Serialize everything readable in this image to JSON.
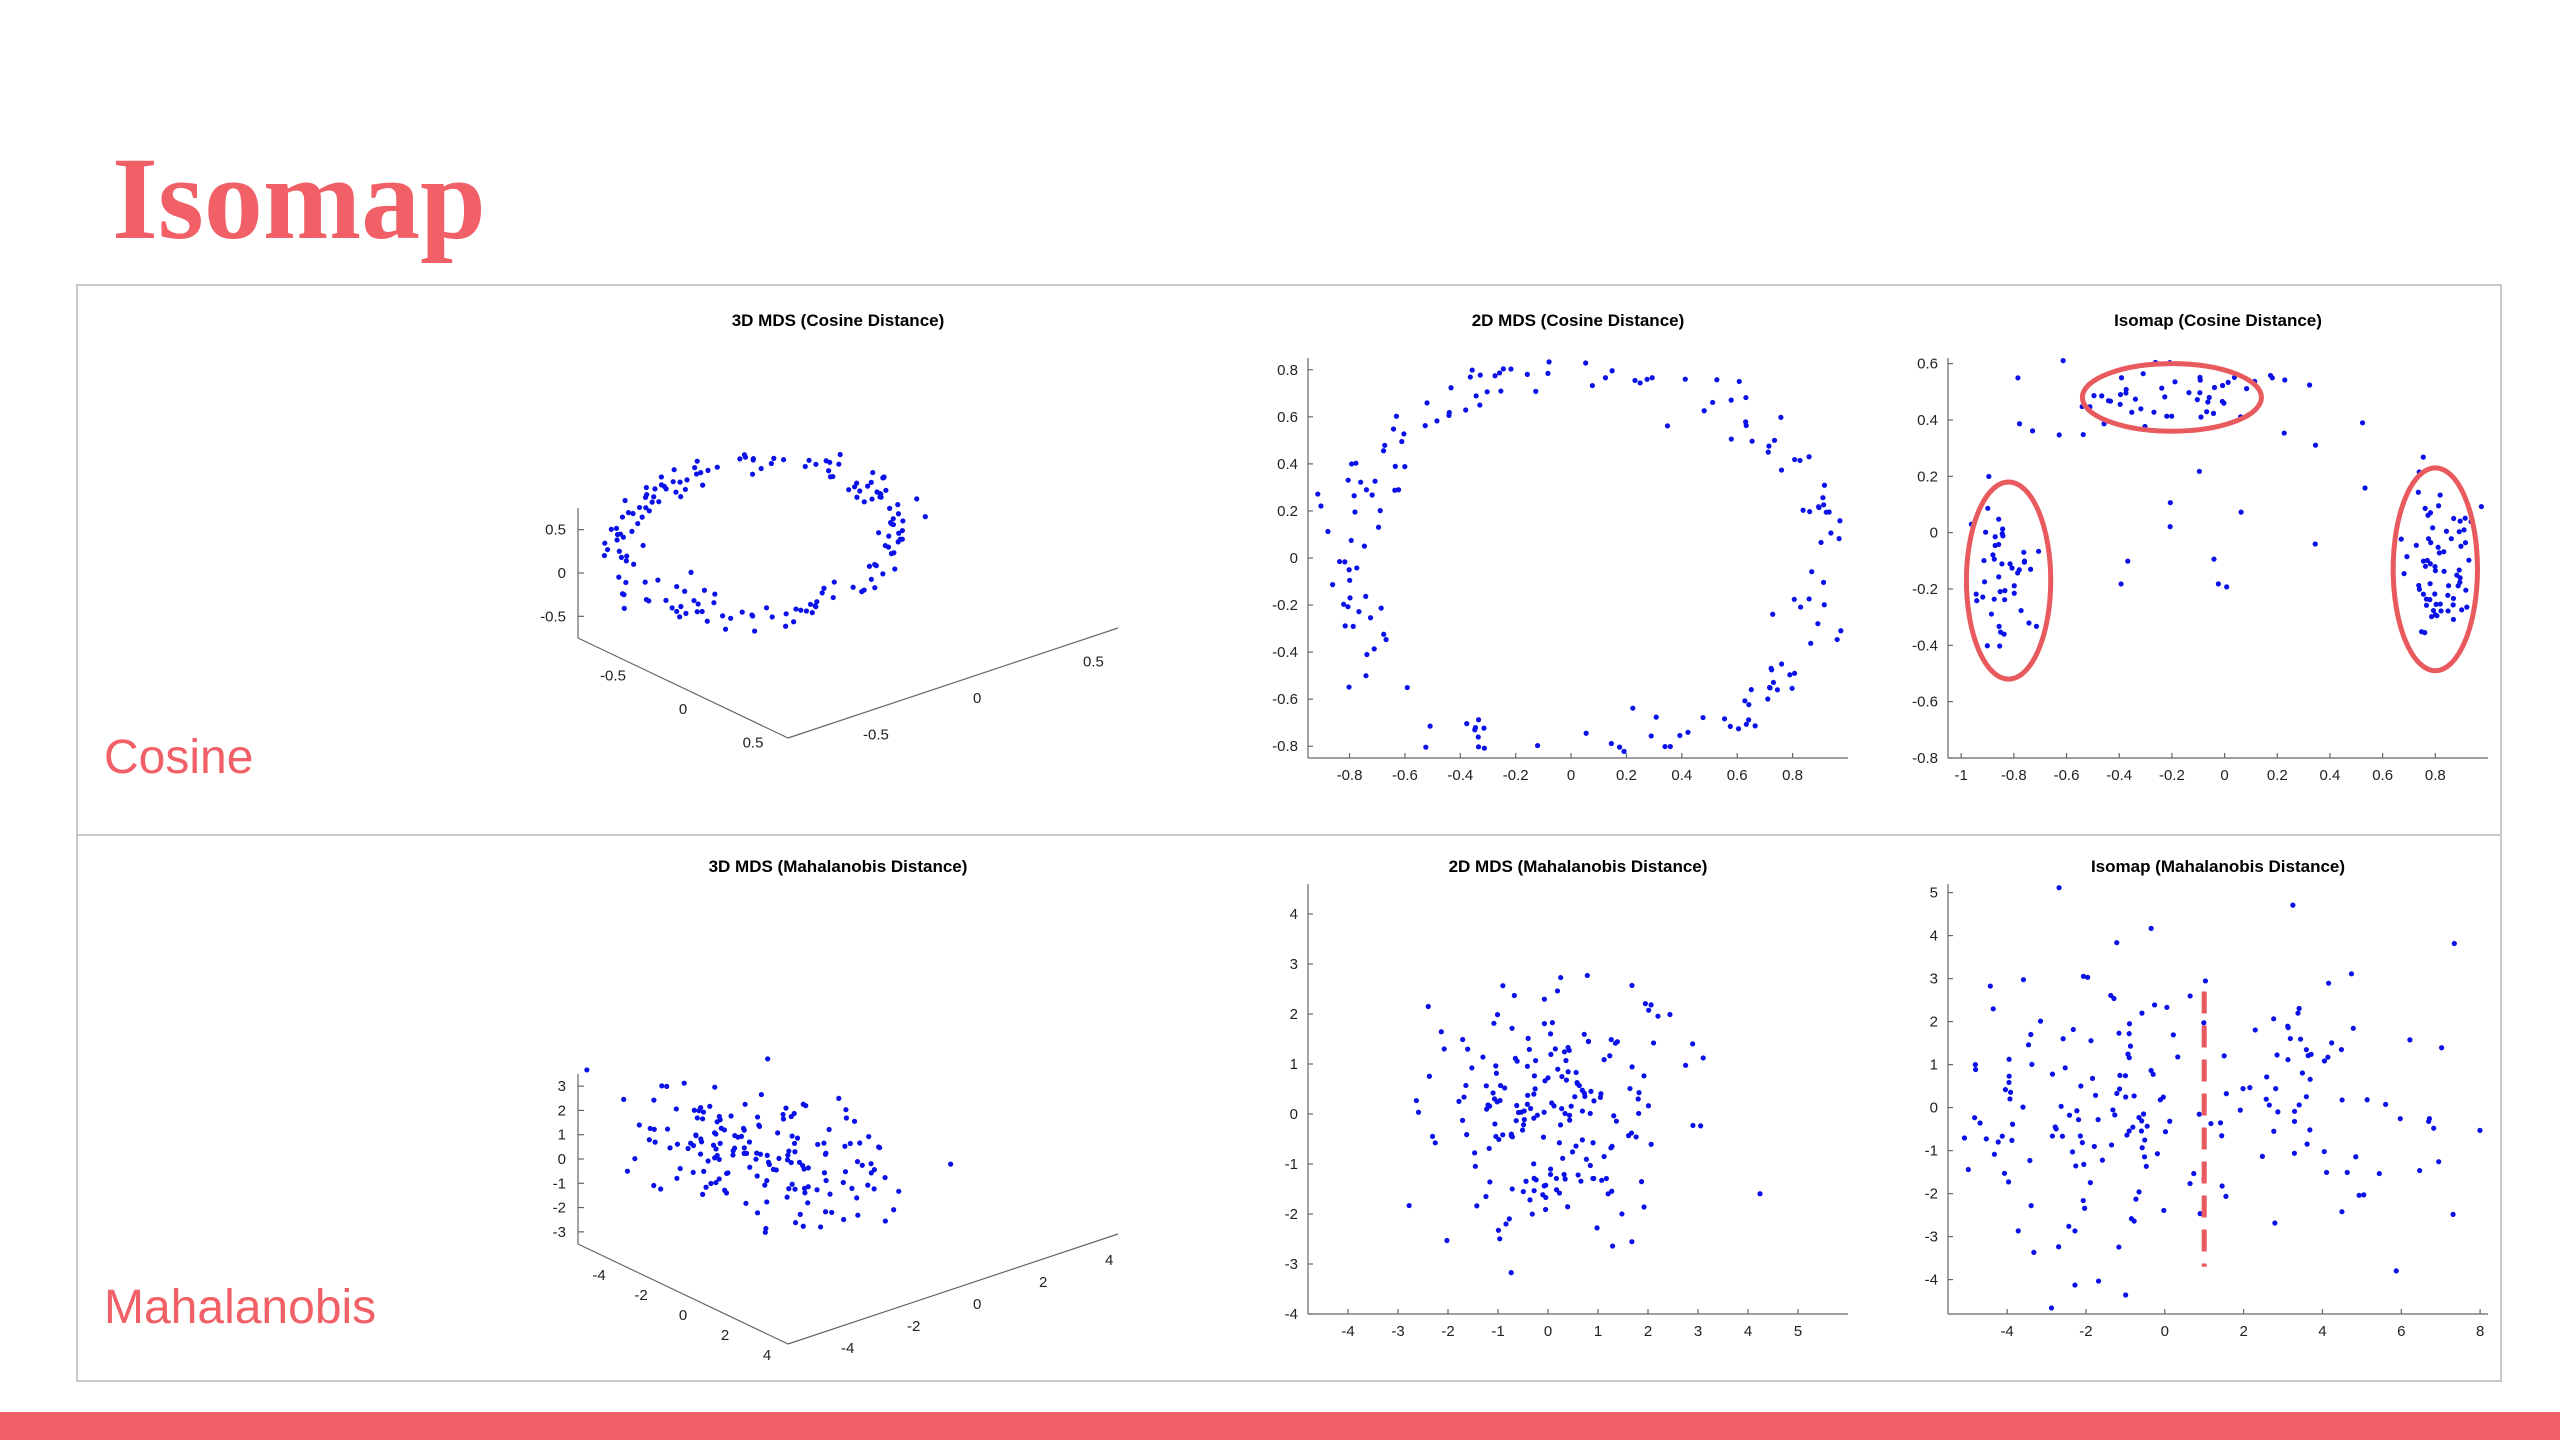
{
  "slide": {
    "title": "Isomap"
  },
  "rows": [
    {
      "label": "Cosine"
    },
    {
      "label": "Mahalanobis"
    }
  ],
  "colors": {
    "accent": "#f06066",
    "points": "#0a10e8",
    "annotation": "#e85a5e",
    "frame": "#c8c8c8"
  },
  "chart_data": [
    {
      "id": "mds3d-cosine",
      "type": "scatter",
      "projection": "3d",
      "title": "3D MDS (Cosine Distance)",
      "x_ticks": [
        "-0.5",
        "0",
        "0.5"
      ],
      "y_ticks": [
        "-0.5",
        "0",
        "0.5"
      ],
      "z_ticks": [
        "-0.5",
        "0",
        "0.5"
      ],
      "shape": "ring",
      "n_points": 170
    },
    {
      "id": "mds2d-cosine",
      "type": "scatter",
      "title": "2D MDS (Cosine Distance)",
      "xlim": [
        -0.95,
        1.0
      ],
      "ylim": [
        -0.85,
        0.85
      ],
      "x_ticks": [
        "-0.8",
        "-0.6",
        "-0.4",
        "-0.2",
        "0",
        "0.2",
        "0.4",
        "0.6",
        "0.8"
      ],
      "y_ticks": [
        "-0.8",
        "-0.6",
        "-0.4",
        "-0.2",
        "0",
        "0.2",
        "0.4",
        "0.6",
        "0.8"
      ],
      "shape": "ring",
      "n_points": 180
    },
    {
      "id": "isomap-cosine",
      "type": "scatter",
      "title": "Isomap (Cosine Distance)",
      "xlim": [
        -1.05,
        1.0
      ],
      "ylim": [
        -0.8,
        0.62
      ],
      "x_ticks": [
        "-1",
        "-0.8",
        "-0.6",
        "-0.4",
        "-0.2",
        "0",
        "0.2",
        "0.4",
        "0.6",
        "0.8"
      ],
      "y_ticks": [
        "-0.8",
        "-0.6",
        "-0.4",
        "-0.2",
        "0",
        "0.2",
        "0.4",
        "0.6"
      ],
      "shape": "arch",
      "n_points": 180,
      "annotations": [
        {
          "type": "ellipse",
          "cx": -0.2,
          "cy": 0.48,
          "rx": 0.34,
          "ry": 0.12
        },
        {
          "type": "ellipse",
          "cx": -0.82,
          "cy": -0.17,
          "rx": 0.16,
          "ry": 0.35
        },
        {
          "type": "ellipse",
          "cx": 0.8,
          "cy": -0.13,
          "rx": 0.16,
          "ry": 0.36
        }
      ]
    },
    {
      "id": "mds3d-mahalanobis",
      "type": "scatter",
      "projection": "3d",
      "title": "3D MDS (Mahalanobis Distance)",
      "z_ticks": [
        "-3",
        "-2",
        "-1",
        "0",
        "1",
        "2",
        "3"
      ],
      "x_ticks": [
        "-4",
        "-2",
        "0",
        "2",
        "4"
      ],
      "y_ticks": [
        "-4",
        "-2",
        "0",
        "2",
        "4"
      ],
      "shape": "blob",
      "n_points": 170
    },
    {
      "id": "mds2d-mahalanobis",
      "type": "scatter",
      "title": "2D MDS (Mahalanobis Distance)",
      "xlim": [
        -4.8,
        6.0
      ],
      "ylim": [
        -4.0,
        4.6
      ],
      "x_ticks": [
        "-4",
        "-3",
        "-2",
        "-1",
        "0",
        "1",
        "2",
        "3",
        "4",
        "5"
      ],
      "y_ticks": [
        "-4",
        "-3",
        "-2",
        "-1",
        "0",
        "1",
        "2",
        "3",
        "4"
      ],
      "shape": "blob",
      "n_points": 200
    },
    {
      "id": "isomap-mahalanobis",
      "type": "scatter",
      "title": "Isomap (Mahalanobis Distance)",
      "xlim": [
        -5.5,
        8.2
      ],
      "ylim": [
        -4.8,
        5.2
      ],
      "x_ticks": [
        "-4",
        "-2",
        "0",
        "2",
        "4",
        "6",
        "8"
      ],
      "y_ticks": [
        "-4",
        "-3",
        "-2",
        "-1",
        "0",
        "1",
        "2",
        "3",
        "4",
        "5"
      ],
      "shape": "split",
      "n_points": 200,
      "annotations": [
        {
          "type": "dashed-vline",
          "x": 1.0,
          "y_range": [
            -3.7,
            2.7
          ]
        }
      ]
    }
  ]
}
